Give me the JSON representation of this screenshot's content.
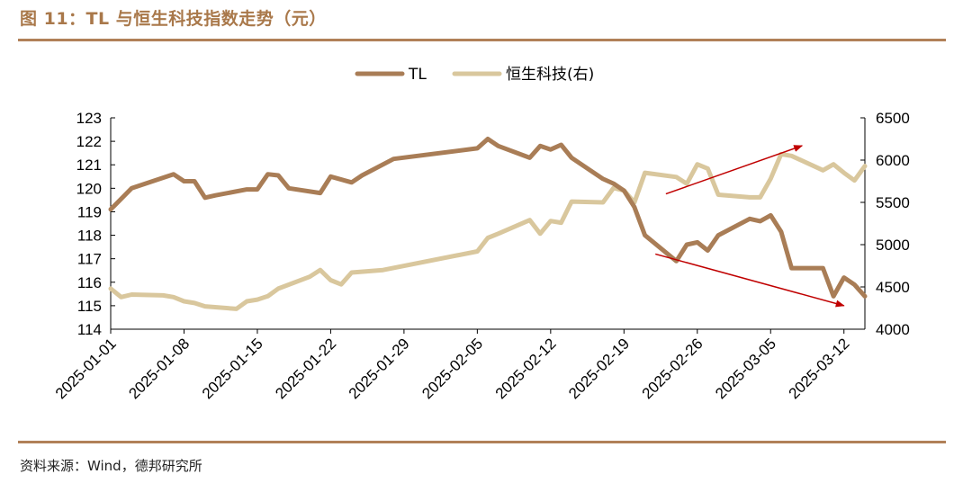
{
  "figure": {
    "title": "图 11：TL 与恒生科技指数走势（元）",
    "source": "资料来源：Wind，德邦研究所"
  },
  "colors": {
    "tl": "#a97d56",
    "hstech": "#d9c79d",
    "arrow": "#c00000",
    "rule": "#b18058"
  },
  "chart_data": {
    "type": "line",
    "x_ticks": [
      "2025-01-01",
      "2025-01-08",
      "2025-01-15",
      "2025-01-22",
      "2025-01-29",
      "2025-02-05",
      "2025-02-12",
      "2025-02-19",
      "2025-02-26",
      "2025-03-05",
      "2025-03-12"
    ],
    "y_left": {
      "lim": [
        114,
        123
      ],
      "ticks": [
        114,
        115,
        116,
        117,
        118,
        119,
        120,
        121,
        122,
        123
      ]
    },
    "y_right": {
      "lim": [
        4000,
        6500
      ],
      "ticks": [
        4000,
        4500,
        5000,
        5500,
        6000,
        6500
      ]
    },
    "legend": {
      "placement": "top-center"
    },
    "grid": false,
    "series": [
      {
        "name": "TL",
        "axis": "left",
        "points": [
          [
            "2025-01-01",
            119.1
          ],
          [
            "2025-01-03",
            120.0
          ],
          [
            "2025-01-07",
            120.6
          ],
          [
            "2025-01-08",
            120.3
          ],
          [
            "2025-01-09",
            120.3
          ],
          [
            "2025-01-10",
            119.6
          ],
          [
            "2025-01-11",
            119.7
          ],
          [
            "2025-01-14",
            119.95
          ],
          [
            "2025-01-15",
            119.95
          ],
          [
            "2025-01-16",
            120.6
          ],
          [
            "2025-01-17",
            120.55
          ],
          [
            "2025-01-18",
            120.0
          ],
          [
            "2025-01-21",
            119.8
          ],
          [
            "2025-01-22",
            120.5
          ],
          [
            "2025-01-24",
            120.25
          ],
          [
            "2025-01-25",
            120.55
          ],
          [
            "2025-01-28",
            121.25
          ],
          [
            "2025-02-05",
            121.7
          ],
          [
            "2025-02-06",
            122.1
          ],
          [
            "2025-02-07",
            121.8
          ],
          [
            "2025-02-10",
            121.3
          ],
          [
            "2025-02-11",
            121.8
          ],
          [
            "2025-02-12",
            121.65
          ],
          [
            "2025-02-13",
            121.85
          ],
          [
            "2025-02-14",
            121.3
          ],
          [
            "2025-02-17",
            120.4
          ],
          [
            "2025-02-18",
            120.2
          ],
          [
            "2025-02-19",
            119.9
          ],
          [
            "2025-02-20",
            119.2
          ],
          [
            "2025-02-21",
            118.0
          ],
          [
            "2025-02-24",
            116.9
          ],
          [
            "2025-02-25",
            117.6
          ],
          [
            "2025-02-26",
            117.7
          ],
          [
            "2025-02-27",
            117.35
          ],
          [
            "2025-02-28",
            118.0
          ],
          [
            "2025-03-03",
            118.7
          ],
          [
            "2025-03-04",
            118.6
          ],
          [
            "2025-03-05",
            118.85
          ],
          [
            "2025-03-06",
            118.15
          ],
          [
            "2025-03-07",
            116.6
          ],
          [
            "2025-03-10",
            116.6
          ],
          [
            "2025-03-11",
            115.4
          ],
          [
            "2025-03-12",
            116.2
          ],
          [
            "2025-03-13",
            115.9
          ],
          [
            "2025-03-14",
            115.4
          ]
        ]
      },
      {
        "name": "恒生科技(右)",
        "axis": "right",
        "points": [
          [
            "2025-01-01",
            4480
          ],
          [
            "2025-01-02",
            4380
          ],
          [
            "2025-01-03",
            4410
          ],
          [
            "2025-01-06",
            4400
          ],
          [
            "2025-01-07",
            4380
          ],
          [
            "2025-01-08",
            4330
          ],
          [
            "2025-01-09",
            4310
          ],
          [
            "2025-01-10",
            4270
          ],
          [
            "2025-01-13",
            4240
          ],
          [
            "2025-01-14",
            4330
          ],
          [
            "2025-01-15",
            4350
          ],
          [
            "2025-01-16",
            4390
          ],
          [
            "2025-01-17",
            4480
          ],
          [
            "2025-01-20",
            4620
          ],
          [
            "2025-01-21",
            4700
          ],
          [
            "2025-01-22",
            4580
          ],
          [
            "2025-01-23",
            4530
          ],
          [
            "2025-01-24",
            4670
          ],
          [
            "2025-01-27",
            4700
          ],
          [
            "2025-02-05",
            4920
          ],
          [
            "2025-02-06",
            5080
          ],
          [
            "2025-02-07",
            5130
          ],
          [
            "2025-02-10",
            5290
          ],
          [
            "2025-02-11",
            5130
          ],
          [
            "2025-02-12",
            5280
          ],
          [
            "2025-02-13",
            5260
          ],
          [
            "2025-02-14",
            5510
          ],
          [
            "2025-02-17",
            5500
          ],
          [
            "2025-02-18",
            5670
          ],
          [
            "2025-02-19",
            5640
          ],
          [
            "2025-02-20",
            5500
          ],
          [
            "2025-02-21",
            5850
          ],
          [
            "2025-02-24",
            5800
          ],
          [
            "2025-02-25",
            5720
          ],
          [
            "2025-02-26",
            5950
          ],
          [
            "2025-02-27",
            5900
          ],
          [
            "2025-02-28",
            5590
          ],
          [
            "2025-03-03",
            5560
          ],
          [
            "2025-03-04",
            5560
          ],
          [
            "2025-03-05",
            5780
          ],
          [
            "2025-03-06",
            6070
          ],
          [
            "2025-03-07",
            6050
          ],
          [
            "2025-03-10",
            5880
          ],
          [
            "2025-03-11",
            5950
          ],
          [
            "2025-03-12",
            5850
          ],
          [
            "2025-03-13",
            5760
          ],
          [
            "2025-03-14",
            5930
          ]
        ]
      }
    ],
    "annotations": [
      {
        "type": "arrow",
        "from": [
          "2025-02-23",
          5600
        ],
        "to": [
          "2025-03-08",
          6170
        ],
        "axis": "right"
      },
      {
        "type": "arrow",
        "from": [
          "2025-02-22",
          117.2
        ],
        "to": [
          "2025-03-12",
          115.0
        ],
        "axis": "left"
      }
    ]
  }
}
